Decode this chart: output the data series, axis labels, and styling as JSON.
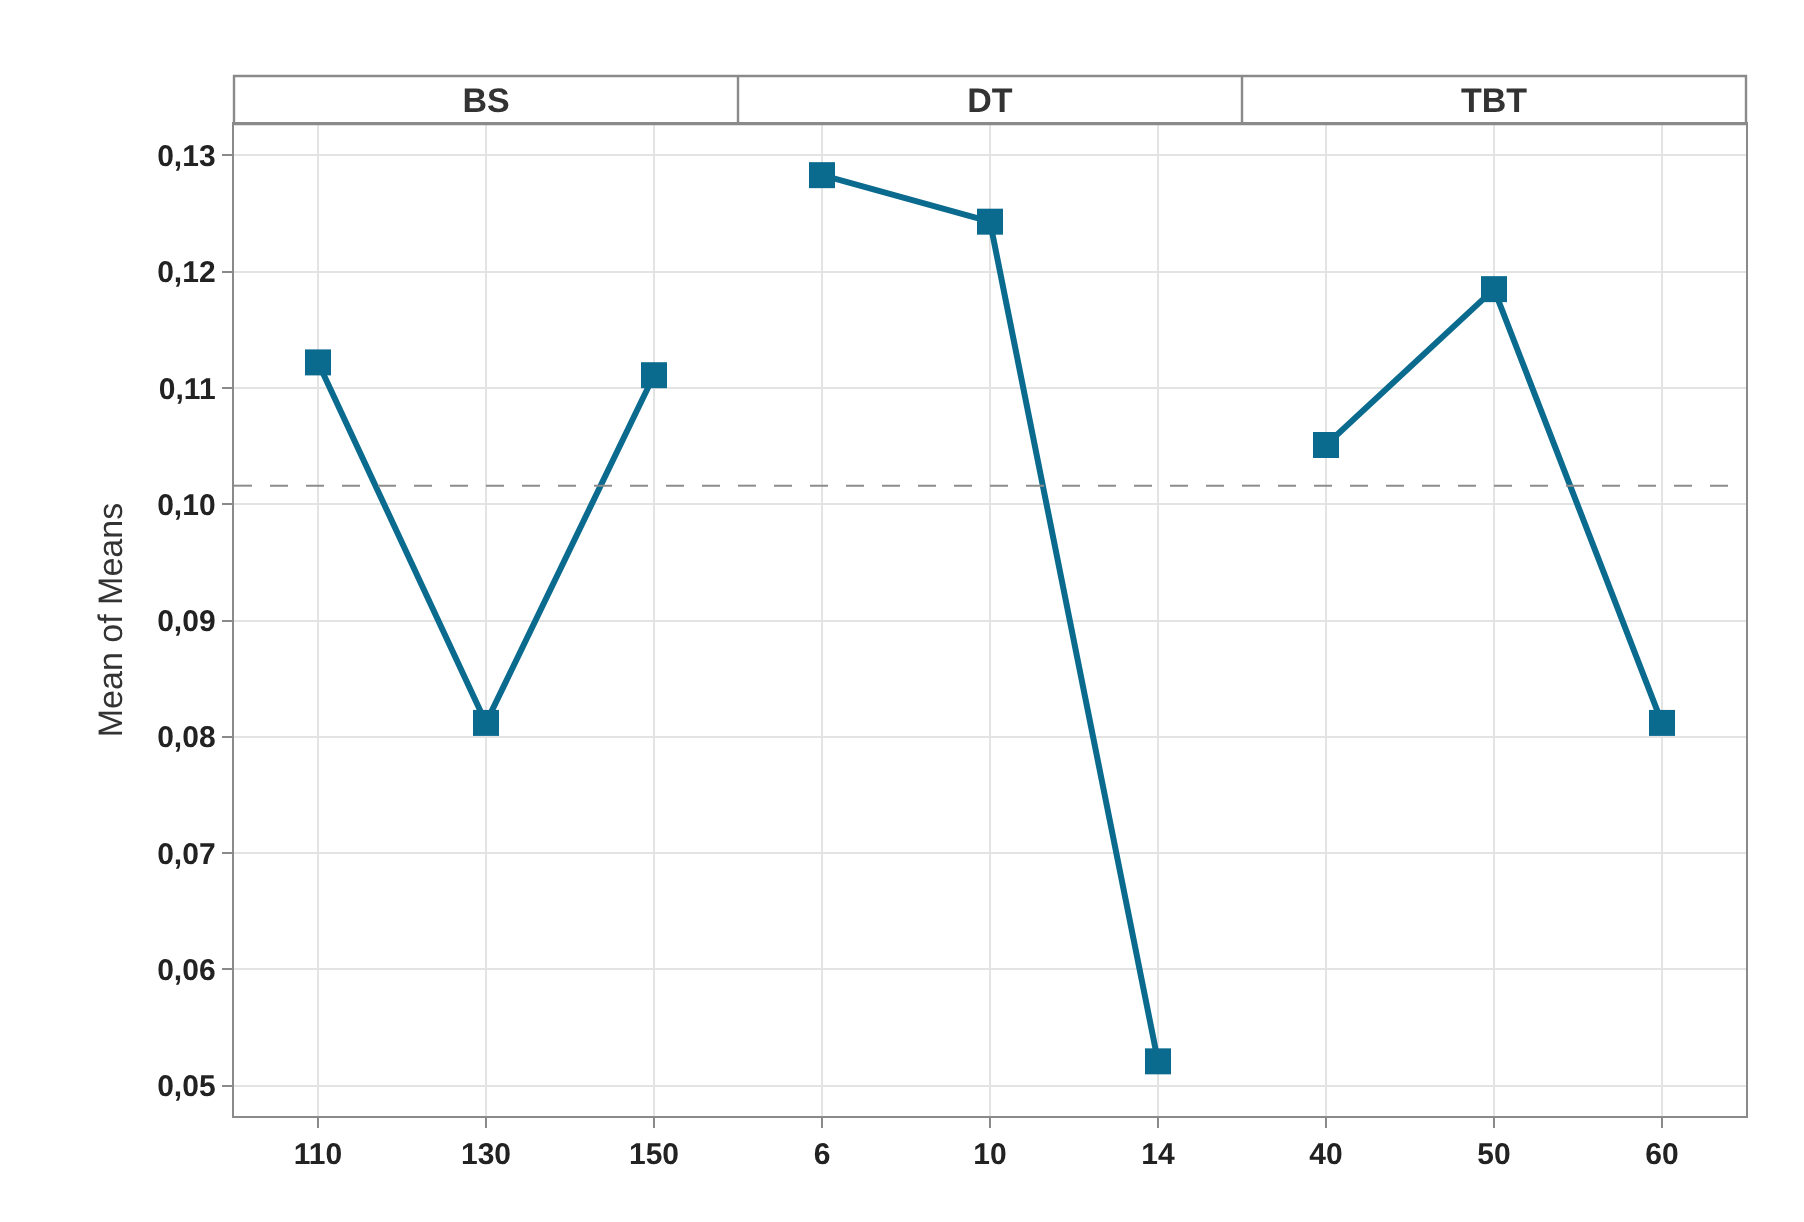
{
  "chart_data": [
    {
      "type": "line",
      "title": "BS",
      "ylabel": "Mean of Means",
      "categories": [
        "110",
        "130",
        "150"
      ],
      "series": [
        {
          "color": "#0a6b8f",
          "values": [
            0.1122,
            0.0812,
            0.1111
          ]
        }
      ],
      "ylim": [
        0.0474,
        0.1327
      ],
      "yticks": [
        {
          "value": 0.05,
          "label": "0,05"
        },
        {
          "value": 0.06,
          "label": "0,06"
        },
        {
          "value": 0.07,
          "label": "0,07"
        },
        {
          "value": 0.08,
          "label": "0,08"
        },
        {
          "value": 0.09,
          "label": "0,09"
        },
        {
          "value": 0.1,
          "label": "0,10"
        },
        {
          "value": 0.11,
          "label": "0,11"
        },
        {
          "value": 0.12,
          "label": "0,12"
        },
        {
          "value": 0.13,
          "label": "0,13"
        }
      ],
      "ref_lines": [
        {
          "axis": "y",
          "value": 0.1016,
          "color": "#8c8c8c",
          "line_style": "dashed"
        }
      ],
      "grid": true,
      "marker": "square",
      "line_style": "solid"
    },
    {
      "type": "line",
      "title": "DT",
      "categories": [
        "6",
        "10",
        "14"
      ],
      "series": [
        {
          "color": "#0a6b8f",
          "values": [
            0.1283,
            0.1243,
            0.0521
          ]
        }
      ],
      "ylim": [
        0.0474,
        0.1327
      ],
      "yticks": [
        0.05,
        0.06,
        0.07,
        0.08,
        0.09,
        0.1,
        0.11,
        0.12,
        0.13
      ],
      "ref_lines": [
        {
          "axis": "y",
          "value": 0.1016,
          "color": "#8c8c8c",
          "line_style": "dashed"
        }
      ],
      "grid": true,
      "marker": "square",
      "line_style": "solid",
      "tick_labels": "x"
    },
    {
      "type": "line",
      "title": "TBT",
      "categories": [
        "40",
        "50",
        "60"
      ],
      "series": [
        {
          "color": "#0a6b8f",
          "values": [
            0.1051,
            0.1185,
            0.0812
          ]
        }
      ],
      "ylim": [
        0.0474,
        0.1327
      ],
      "yticks": [
        0.05,
        0.06,
        0.07,
        0.08,
        0.09,
        0.1,
        0.11,
        0.12,
        0.13
      ],
      "ref_lines": [
        {
          "axis": "y",
          "value": 0.1016,
          "color": "#8c8c8c",
          "line_style": "dashed"
        }
      ],
      "grid": true,
      "marker": "square",
      "line_style": "solid",
      "tick_labels": "x"
    }
  ]
}
